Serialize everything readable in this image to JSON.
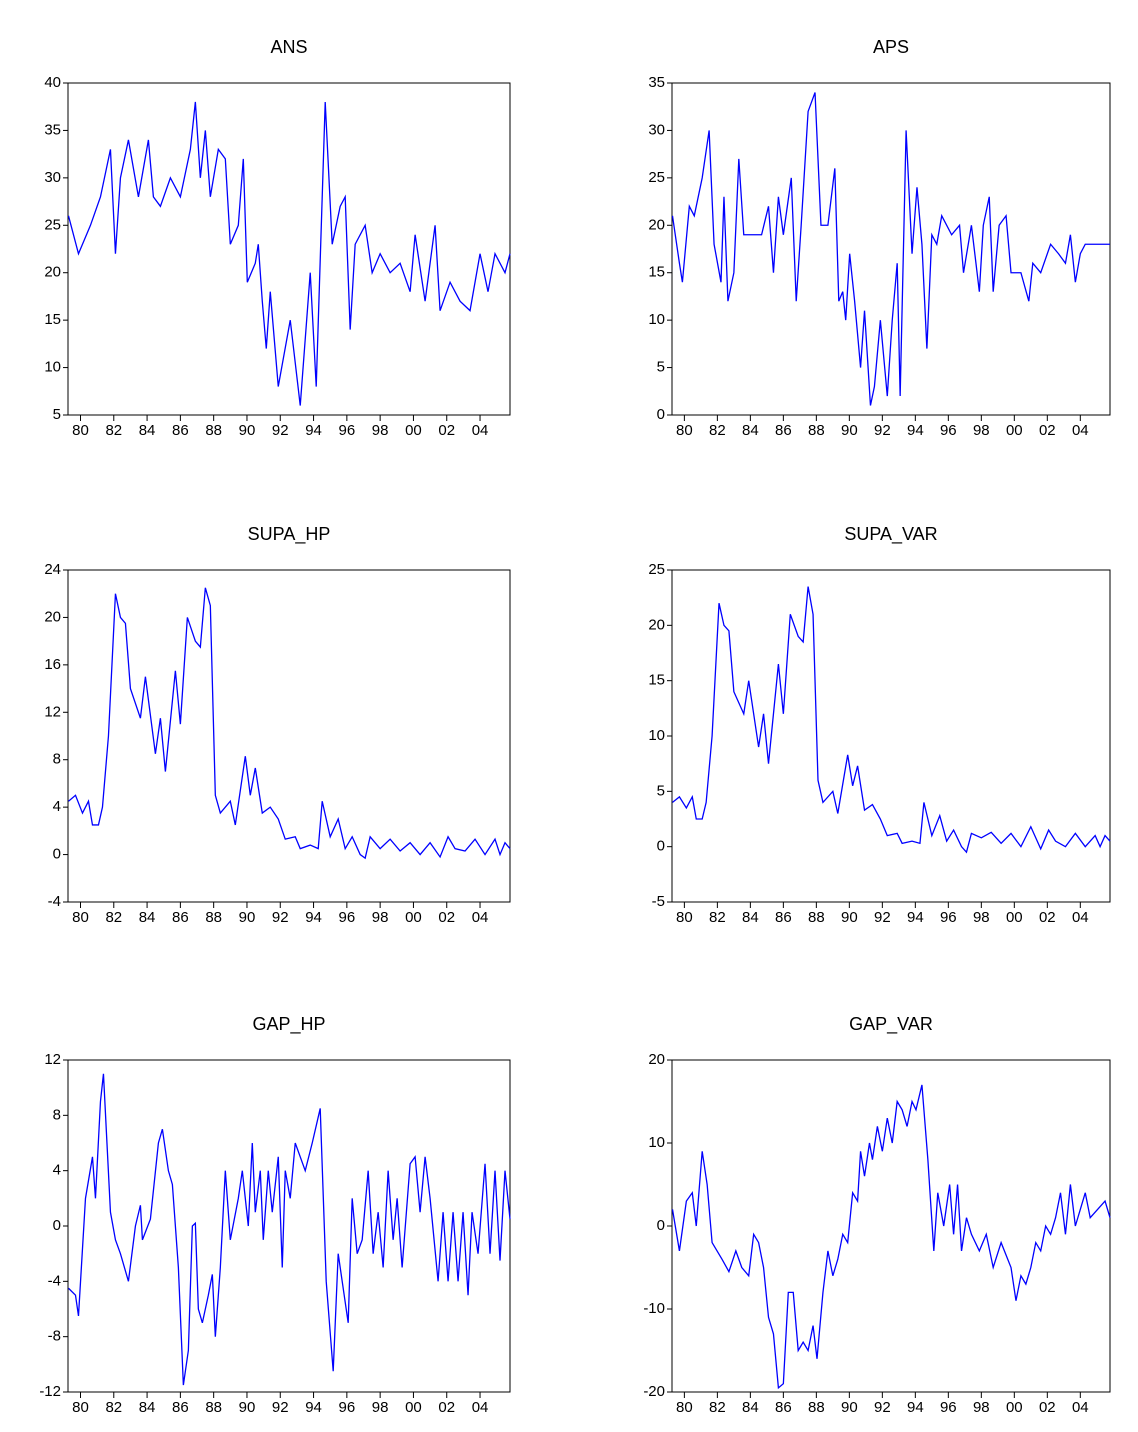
{
  "chart_data": [
    {
      "type": "line",
      "title": "ANS",
      "color": "#0000ff",
      "x": [
        1979.28,
        1979.88,
        1980.6,
        1981.2,
        1981.8,
        1982.1,
        1982.4,
        1982.88,
        1983.48,
        1984.08,
        1984.38,
        1984.8,
        1985.4,
        1986,
        1986.6,
        1986.9,
        1987.2,
        1987.5,
        1987.8,
        1988.28,
        1988.7,
        1989,
        1989.48,
        1989.78,
        1990.02,
        1990.5,
        1990.68,
        1990.92,
        1991.16,
        1991.4,
        1991.88,
        1992.6,
        1993.2,
        1993.8,
        1994.16,
        1994.7,
        1995.12,
        1995.6,
        1995.9,
        1996.2,
        1996.5,
        1997.1,
        1997.52,
        1998,
        1998.6,
        1999.2,
        1999.8,
        2000.1,
        2000.7,
        2001.3,
        2001.6,
        2002.2,
        2002.8,
        2003.4,
        2004,
        2004.48,
        2004.9,
        2005.5,
        2005.8
      ],
      "values": [
        26,
        22,
        25,
        28,
        33,
        22,
        30,
        34,
        28,
        34,
        28,
        27,
        30,
        28,
        33,
        38,
        30,
        35,
        28,
        33,
        32,
        23,
        25,
        32,
        19,
        21,
        23,
        17,
        12,
        18,
        8,
        15,
        6,
        20,
        8,
        38,
        23,
        27,
        28,
        14,
        23,
        25,
        20,
        22,
        20,
        21,
        18,
        24,
        17,
        25,
        16,
        19,
        17,
        16,
        22,
        18,
        22,
        20,
        22
      ],
      "xlim": [
        1979.25,
        2005.8
      ],
      "xticks": [
        {
          "value": 1980,
          "label": "80"
        },
        {
          "value": 1982,
          "label": "82"
        },
        {
          "value": 1984,
          "label": "84"
        },
        {
          "value": 1986,
          "label": "86"
        },
        {
          "value": 1988,
          "label": "88"
        },
        {
          "value": 1990,
          "label": "90"
        },
        {
          "value": 1992,
          "label": "92"
        },
        {
          "value": 1994,
          "label": "94"
        },
        {
          "value": 1996,
          "label": "96"
        },
        {
          "value": 1998,
          "label": "98"
        },
        {
          "value": 2000,
          "label": "00"
        },
        {
          "value": 2002,
          "label": "02"
        },
        {
          "value": 2004,
          "label": "04"
        }
      ],
      "ylim": [
        5,
        40
      ],
      "yticks": [
        5,
        10,
        15,
        20,
        25,
        30,
        35,
        40
      ]
    },
    {
      "type": "line",
      "title": "APS",
      "color": "#0000ff",
      "x": [
        1979.28,
        1979.7,
        1979.88,
        1980.3,
        1980.6,
        1981.08,
        1981.5,
        1981.8,
        1982.22,
        1982.4,
        1982.64,
        1983,
        1983.3,
        1983.6,
        1984.2,
        1984.68,
        1985.1,
        1985.4,
        1985.7,
        1986,
        1986.48,
        1986.78,
        1987.08,
        1987.5,
        1987.92,
        1988.28,
        1988.7,
        1989.12,
        1989.36,
        1989.6,
        1989.78,
        1990.02,
        1990.32,
        1990.68,
        1990.92,
        1991.28,
        1991.52,
        1991.88,
        1992.3,
        1992.6,
        1992.9,
        1993.08,
        1993.44,
        1993.8,
        1994.1,
        1994.4,
        1994.7,
        1995,
        1995.3,
        1995.6,
        1996.2,
        1996.68,
        1996.92,
        1997.4,
        1997.88,
        1998.12,
        1998.48,
        1998.72,
        1999.08,
        1999.5,
        1999.8,
        2000.4,
        2000.88,
        2001.12,
        2001.6,
        2002.2,
        2002.68,
        2003.1,
        2003.4,
        2003.7,
        2004,
        2004.3,
        2005.8
      ],
      "values": [
        21,
        16,
        14,
        22,
        21,
        25,
        30,
        18,
        14,
        23,
        12,
        15,
        27,
        19,
        19,
        19,
        22,
        15,
        23,
        19,
        25,
        12,
        20,
        32,
        34,
        20,
        20,
        26,
        12,
        13,
        10,
        17,
        12,
        5,
        11,
        1,
        3,
        10,
        2,
        10,
        16,
        2,
        30,
        17,
        24,
        18,
        7,
        19,
        18,
        21,
        19,
        20,
        15,
        20,
        13,
        20,
        23,
        13,
        20,
        21,
        15,
        15,
        12,
        16,
        15,
        18,
        17,
        16,
        19,
        14,
        17,
        18,
        18
      ],
      "xlim": [
        1979.25,
        2005.8
      ],
      "xticks": [
        {
          "value": 1980,
          "label": "80"
        },
        {
          "value": 1982,
          "label": "82"
        },
        {
          "value": 1984,
          "label": "84"
        },
        {
          "value": 1986,
          "label": "86"
        },
        {
          "value": 1988,
          "label": "88"
        },
        {
          "value": 1990,
          "label": "90"
        },
        {
          "value": 1992,
          "label": "92"
        },
        {
          "value": 1994,
          "label": "94"
        },
        {
          "value": 1996,
          "label": "96"
        },
        {
          "value": 1998,
          "label": "98"
        },
        {
          "value": 2000,
          "label": "00"
        },
        {
          "value": 2002,
          "label": "02"
        },
        {
          "value": 2004,
          "label": "04"
        }
      ],
      "ylim": [
        0,
        35
      ],
      "yticks": [
        0,
        5,
        10,
        15,
        20,
        25,
        30,
        35
      ]
    },
    {
      "type": "line",
      "title": "SUPA_HP",
      "color": "#0000ff",
      "x": [
        1979.28,
        1979.7,
        1980.12,
        1980.48,
        1980.72,
        1981.08,
        1981.32,
        1981.68,
        1982.1,
        1982.4,
        1982.7,
        1983,
        1983.6,
        1983.9,
        1984.5,
        1984.8,
        1985.1,
        1985.7,
        1986,
        1986.42,
        1986.9,
        1987.2,
        1987.5,
        1987.8,
        1988.1,
        1988.4,
        1989,
        1989.3,
        1989.9,
        1990.2,
        1990.5,
        1990.92,
        1991.4,
        1991.88,
        1992.3,
        1992.9,
        1993.2,
        1993.8,
        1994.28,
        1994.52,
        1995,
        1995.48,
        1995.9,
        1996.32,
        1996.8,
        1997.1,
        1997.4,
        1998,
        1998.6,
        1999.2,
        1999.8,
        2000.4,
        2001,
        2001.6,
        2002.08,
        2002.5,
        2003.1,
        2003.7,
        2004.3,
        2004.9,
        2005.2,
        2005.5,
        2005.8
      ],
      "values": [
        4.5,
        5,
        3.5,
        4.5,
        2.5,
        2.5,
        4,
        10,
        22,
        20,
        19.5,
        14,
        11.5,
        15,
        8.5,
        11.5,
        7,
        15.5,
        11,
        20,
        18,
        17.5,
        22.5,
        21,
        5,
        3.5,
        4.5,
        2.5,
        8.3,
        5,
        7.3,
        3.5,
        4,
        3,
        1.3,
        1.5,
        0.5,
        0.8,
        0.5,
        4.5,
        1.5,
        3,
        0.5,
        1.5,
        0,
        -0.3,
        1.5,
        0.5,
        1.3,
        0.3,
        1,
        0,
        1,
        -0.2,
        1.5,
        0.5,
        0.3,
        1.3,
        0,
        1.3,
        0,
        1,
        0.5
      ],
      "xlim": [
        1979.25,
        2005.8
      ],
      "xticks": [
        {
          "value": 1980,
          "label": "80"
        },
        {
          "value": 1982,
          "label": "82"
        },
        {
          "value": 1984,
          "label": "84"
        },
        {
          "value": 1986,
          "label": "86"
        },
        {
          "value": 1988,
          "label": "88"
        },
        {
          "value": 1990,
          "label": "90"
        },
        {
          "value": 1992,
          "label": "92"
        },
        {
          "value": 1994,
          "label": "94"
        },
        {
          "value": 1996,
          "label": "96"
        },
        {
          "value": 1998,
          "label": "98"
        },
        {
          "value": 2000,
          "label": "00"
        },
        {
          "value": 2002,
          "label": "02"
        },
        {
          "value": 2004,
          "label": "04"
        }
      ],
      "ylim": [
        -4,
        24
      ],
      "yticks": [
        -4,
        0,
        4,
        8,
        12,
        16,
        20,
        24
      ]
    },
    {
      "type": "line",
      "title": "SUPA_VAR",
      "color": "#0000ff",
      "x": [
        1979.28,
        1979.7,
        1980.12,
        1980.48,
        1980.72,
        1981.08,
        1981.32,
        1981.68,
        1982.1,
        1982.4,
        1982.7,
        1983,
        1983.6,
        1983.9,
        1984.5,
        1984.8,
        1985.1,
        1985.7,
        1986,
        1986.42,
        1986.9,
        1987.2,
        1987.5,
        1987.8,
        1988.1,
        1988.4,
        1989,
        1989.3,
        1989.9,
        1990.2,
        1990.5,
        1990.92,
        1991.4,
        1991.88,
        1992.3,
        1992.9,
        1993.2,
        1993.8,
        1994.28,
        1994.52,
        1995,
        1995.48,
        1995.9,
        1996.32,
        1996.8,
        1997.1,
        1997.4,
        1998,
        1998.6,
        1999.2,
        1999.8,
        2000.4,
        2001,
        2001.6,
        2002.08,
        2002.5,
        2003.1,
        2003.7,
        2004.3,
        2004.9,
        2005.2,
        2005.5,
        2005.8
      ],
      "values": [
        4,
        4.5,
        3.5,
        4.5,
        2.5,
        2.5,
        4,
        10,
        22,
        20,
        19.5,
        14,
        12,
        15,
        9,
        12,
        7.5,
        16.5,
        12,
        21,
        19,
        18.5,
        23.5,
        21,
        6,
        4,
        5,
        3,
        8.3,
        5.5,
        7.3,
        3.3,
        3.8,
        2.5,
        1,
        1.2,
        0.3,
        0.5,
        0.3,
        4,
        1,
        2.8,
        0.5,
        1.5,
        0,
        -0.5,
        1.2,
        0.8,
        1.3,
        0.3,
        1.2,
        0,
        1.8,
        -0.2,
        1.5,
        0.5,
        0,
        1.2,
        0,
        1,
        0,
        1,
        0.5
      ],
      "xlim": [
        1979.25,
        2005.8
      ],
      "xticks": [
        {
          "value": 1980,
          "label": "80"
        },
        {
          "value": 1982,
          "label": "82"
        },
        {
          "value": 1984,
          "label": "84"
        },
        {
          "value": 1986,
          "label": "86"
        },
        {
          "value": 1988,
          "label": "88"
        },
        {
          "value": 1990,
          "label": "90"
        },
        {
          "value": 1992,
          "label": "92"
        },
        {
          "value": 1994,
          "label": "94"
        },
        {
          "value": 1996,
          "label": "96"
        },
        {
          "value": 1998,
          "label": "98"
        },
        {
          "value": 2000,
          "label": "00"
        },
        {
          "value": 2002,
          "label": "02"
        },
        {
          "value": 2004,
          "label": "04"
        }
      ],
      "ylim": [
        -5,
        25
      ],
      "yticks": [
        -5,
        0,
        5,
        10,
        15,
        20,
        25
      ]
    },
    {
      "type": "line",
      "title": "GAP_HP",
      "color": "#0000ff",
      "x": [
        1979.28,
        1979.7,
        1979.88,
        1980.3,
        1980.72,
        1980.9,
        1981.2,
        1981.38,
        1981.8,
        1982.1,
        1982.4,
        1982.88,
        1983.3,
        1983.6,
        1983.72,
        1984.2,
        1984.68,
        1984.92,
        1985.28,
        1985.52,
        1985.88,
        1986.18,
        1986.48,
        1986.72,
        1986.9,
        1987.08,
        1987.32,
        1987.68,
        1987.92,
        1988.1,
        1988.4,
        1988.7,
        1989,
        1989.48,
        1989.72,
        1990.08,
        1990.32,
        1990.5,
        1990.8,
        1990.98,
        1991.28,
        1991.52,
        1991.88,
        1992.12,
        1992.3,
        1992.6,
        1992.9,
        1993.5,
        1993.92,
        1994.4,
        1994.76,
        1995.18,
        1995.48,
        1995.72,
        1996.08,
        1996.32,
        1996.62,
        1996.92,
        1997.28,
        1997.58,
        1997.88,
        1998.18,
        1998.48,
        1998.78,
        1999.02,
        1999.32,
        1999.8,
        2000.1,
        2000.4,
        2000.7,
        2001,
        2001.48,
        2001.78,
        2002.08,
        2002.38,
        2002.68,
        2002.98,
        2003.28,
        2003.52,
        2003.88,
        2004.3,
        2004.6,
        2004.9,
        2005.2,
        2005.5,
        2005.8
      ],
      "values": [
        -4.5,
        -5,
        -6.5,
        2,
        5,
        2,
        9,
        11,
        1,
        -1,
        -2,
        -4,
        0,
        1.5,
        -1,
        0.5,
        6,
        7,
        4,
        3,
        -3,
        -11.5,
        -9,
        0,
        0.2,
        -6,
        -7,
        -5,
        -3.5,
        -8,
        -3,
        4,
        -1,
        2,
        4,
        0,
        6,
        1,
        4,
        -1,
        4,
        1,
        5,
        -3,
        4,
        2,
        6,
        4,
        6,
        8.5,
        -4,
        -10.5,
        -2,
        -4,
        -7,
        2,
        -2,
        -1,
        4,
        -2,
        1,
        -3,
        4,
        -1,
        2,
        -3,
        4.5,
        5,
        1,
        5,
        2,
        -4,
        1,
        -4,
        1,
        -4,
        1,
        -5,
        1,
        -2,
        4.5,
        -2,
        4,
        -2.5,
        4,
        0.5
      ],
      "xlim": [
        1979.25,
        2005.8
      ],
      "xticks": [
        {
          "value": 1980,
          "label": "80"
        },
        {
          "value": 1982,
          "label": "82"
        },
        {
          "value": 1984,
          "label": "84"
        },
        {
          "value": 1986,
          "label": "86"
        },
        {
          "value": 1988,
          "label": "88"
        },
        {
          "value": 1990,
          "label": "90"
        },
        {
          "value": 1992,
          "label": "92"
        },
        {
          "value": 1994,
          "label": "94"
        },
        {
          "value": 1996,
          "label": "96"
        },
        {
          "value": 1998,
          "label": "98"
        },
        {
          "value": 2000,
          "label": "00"
        },
        {
          "value": 2002,
          "label": "02"
        },
        {
          "value": 2004,
          "label": "04"
        }
      ],
      "ylim": [
        -12,
        12
      ],
      "yticks": [
        -12,
        -8,
        -4,
        0,
        4,
        8,
        12
      ]
    },
    {
      "type": "line",
      "title": "GAP_VAR",
      "color": "#0000ff",
      "x": [
        1979.28,
        1979.7,
        1980.12,
        1980.48,
        1980.72,
        1981.08,
        1981.38,
        1981.68,
        1982.28,
        1982.7,
        1983.12,
        1983.48,
        1983.9,
        1984.2,
        1984.5,
        1984.8,
        1985.1,
        1985.4,
        1985.7,
        1986,
        1986.3,
        1986.6,
        1986.9,
        1987.2,
        1987.5,
        1987.8,
        1988.04,
        1988.4,
        1988.7,
        1989,
        1989.3,
        1989.6,
        1989.9,
        1990.2,
        1990.5,
        1990.68,
        1990.92,
        1991.22,
        1991.4,
        1991.7,
        1992,
        1992.3,
        1992.6,
        1992.9,
        1993.2,
        1993.5,
        1993.8,
        1994.04,
        1994.4,
        1994.76,
        1995.12,
        1995.36,
        1995.72,
        1996.08,
        1996.32,
        1996.56,
        1996.8,
        1997.1,
        1997.4,
        1997.88,
        1998.3,
        1998.72,
        1999.2,
        1999.8,
        2000.1,
        2000.4,
        2000.7,
        2001,
        2001.3,
        2001.6,
        2001.9,
        2002.2,
        2002.5,
        2002.8,
        2003.1,
        2003.4,
        2003.7,
        2004,
        2004.3,
        2004.6,
        2005.5,
        2005.8
      ],
      "values": [
        2,
        -3,
        3,
        4,
        0,
        9,
        5,
        -2,
        -4,
        -5.5,
        -3,
        -5,
        -6,
        -1,
        -2,
        -5,
        -11,
        -13,
        -19.5,
        -19,
        -8,
        -8,
        -15,
        -14,
        -15,
        -12,
        -16,
        -8,
        -3,
        -6,
        -4,
        -1,
        -2,
        4,
        3,
        9,
        6,
        10,
        8,
        12,
        9,
        13,
        10,
        15,
        14,
        12,
        15,
        14,
        17,
        8,
        -3,
        4,
        0,
        5,
        -1,
        5,
        -3,
        1,
        -1,
        -3,
        -1,
        -5,
        -2,
        -5,
        -9,
        -6,
        -7,
        -5,
        -2,
        -3,
        0,
        -1,
        1,
        4,
        -1,
        5,
        0,
        2,
        4,
        1,
        3,
        1
      ],
      "xlim": [
        1979.25,
        2005.8
      ],
      "xticks": [
        {
          "value": 1980,
          "label": "80"
        },
        {
          "value": 1982,
          "label": "82"
        },
        {
          "value": 1984,
          "label": "84"
        },
        {
          "value": 1986,
          "label": "86"
        },
        {
          "value": 1988,
          "label": "88"
        },
        {
          "value": 1990,
          "label": "90"
        },
        {
          "value": 1992,
          "label": "92"
        },
        {
          "value": 1994,
          "label": "94"
        },
        {
          "value": 1996,
          "label": "96"
        },
        {
          "value": 1998,
          "label": "98"
        },
        {
          "value": 2000,
          "label": "00"
        },
        {
          "value": 2002,
          "label": "02"
        },
        {
          "value": 2004,
          "label": "04"
        }
      ],
      "ylim": [
        -20,
        20
      ],
      "yticks": [
        -20,
        -10,
        0,
        10,
        20
      ]
    }
  ]
}
